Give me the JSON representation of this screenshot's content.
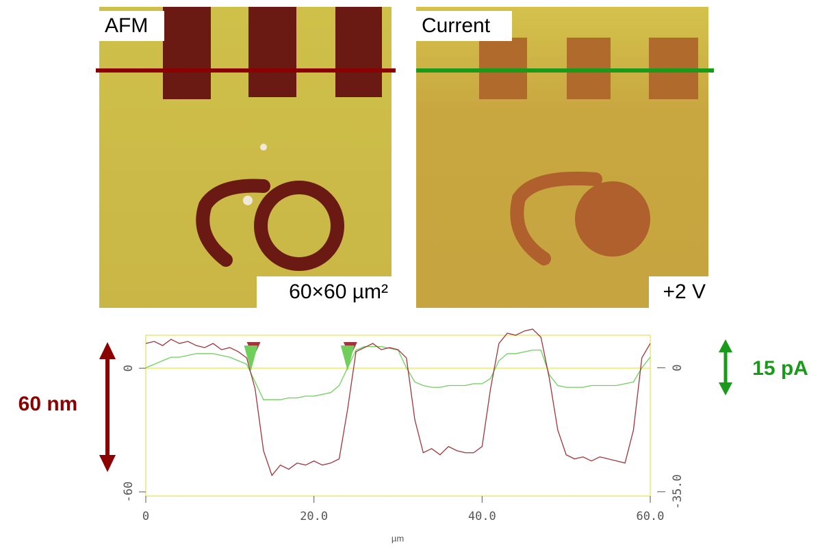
{
  "panels": [
    {
      "label": "AFM",
      "scale_label": "60×60 µm²"
    },
    {
      "label": "Current",
      "scale_label": "+2 V"
    }
  ],
  "chart_data": {
    "type": "line",
    "xlabel": "µm",
    "x": [
      0,
      1,
      2,
      3,
      4,
      5,
      6,
      7,
      8,
      9,
      10,
      11,
      12,
      13,
      14,
      15,
      16,
      17,
      18,
      19,
      20,
      21,
      22,
      23,
      24,
      25,
      26,
      27,
      28,
      29,
      30,
      31,
      32,
      33,
      34,
      35,
      36,
      37,
      38,
      39,
      40,
      41,
      42,
      43,
      44,
      45,
      46,
      47,
      48,
      49,
      50,
      51,
      52,
      53,
      54,
      55,
      56,
      57,
      58,
      59,
      60
    ],
    "xlim": [
      0,
      60
    ],
    "xticks": [
      0,
      {
        "value": 20,
        "label": "20.0"
      },
      {
        "value": 40,
        "label": "40.0"
      },
      {
        "value": 60,
        "label": "60.0"
      }
    ],
    "ylim": [
      -62,
      16
    ],
    "yticks": [
      -60,
      0
    ],
    "y2lim": [
      -36.2,
      9.2
    ],
    "y2ticks": [
      {
        "value": -35,
        "label": "-35.0"
      },
      0
    ],
    "series": [
      {
        "color": "#a0343a",
        "values": [
          12,
          13,
          11,
          14,
          12,
          13,
          11,
          10,
          12,
          9,
          10,
          8,
          5,
          -10,
          -40,
          -52,
          -47,
          -49,
          -46,
          -47,
          -45,
          -47,
          -46,
          -44,
          -20,
          8,
          10,
          12,
          9,
          10,
          9,
          5,
          -25,
          -41,
          -39,
          -42,
          -38,
          -40,
          -41,
          -41,
          -38,
          -10,
          12,
          17,
          16,
          18,
          19,
          15,
          -5,
          -30,
          -42,
          -44,
          -43,
          -45,
          -43,
          -44,
          -45,
          -46,
          -30,
          5,
          12
        ]
      },
      {
        "color": "#6fcf5a",
        "axis": "y2",
        "values": [
          0,
          1,
          2,
          3,
          3,
          3.5,
          4,
          4,
          4,
          3.5,
          3,
          2,
          1,
          -4,
          -9,
          -9,
          -9,
          -8.5,
          -8.5,
          -8,
          -8,
          -7.5,
          -7,
          -5,
          0,
          5,
          6,
          6,
          6,
          5.5,
          5,
          0,
          -4,
          -5,
          -5.5,
          -5.5,
          -5,
          -5,
          -5,
          -4.5,
          -4.5,
          -3,
          2,
          4,
          4,
          4.5,
          5,
          5,
          -2,
          -5,
          -5.5,
          -5.5,
          -5.5,
          -5,
          -5,
          -5,
          -5,
          -4.5,
          -4,
          0,
          3
        ]
      }
    ],
    "cursors": [
      12.5,
      24
    ],
    "annotations": [
      "60 nm",
      "15 pA"
    ]
  }
}
